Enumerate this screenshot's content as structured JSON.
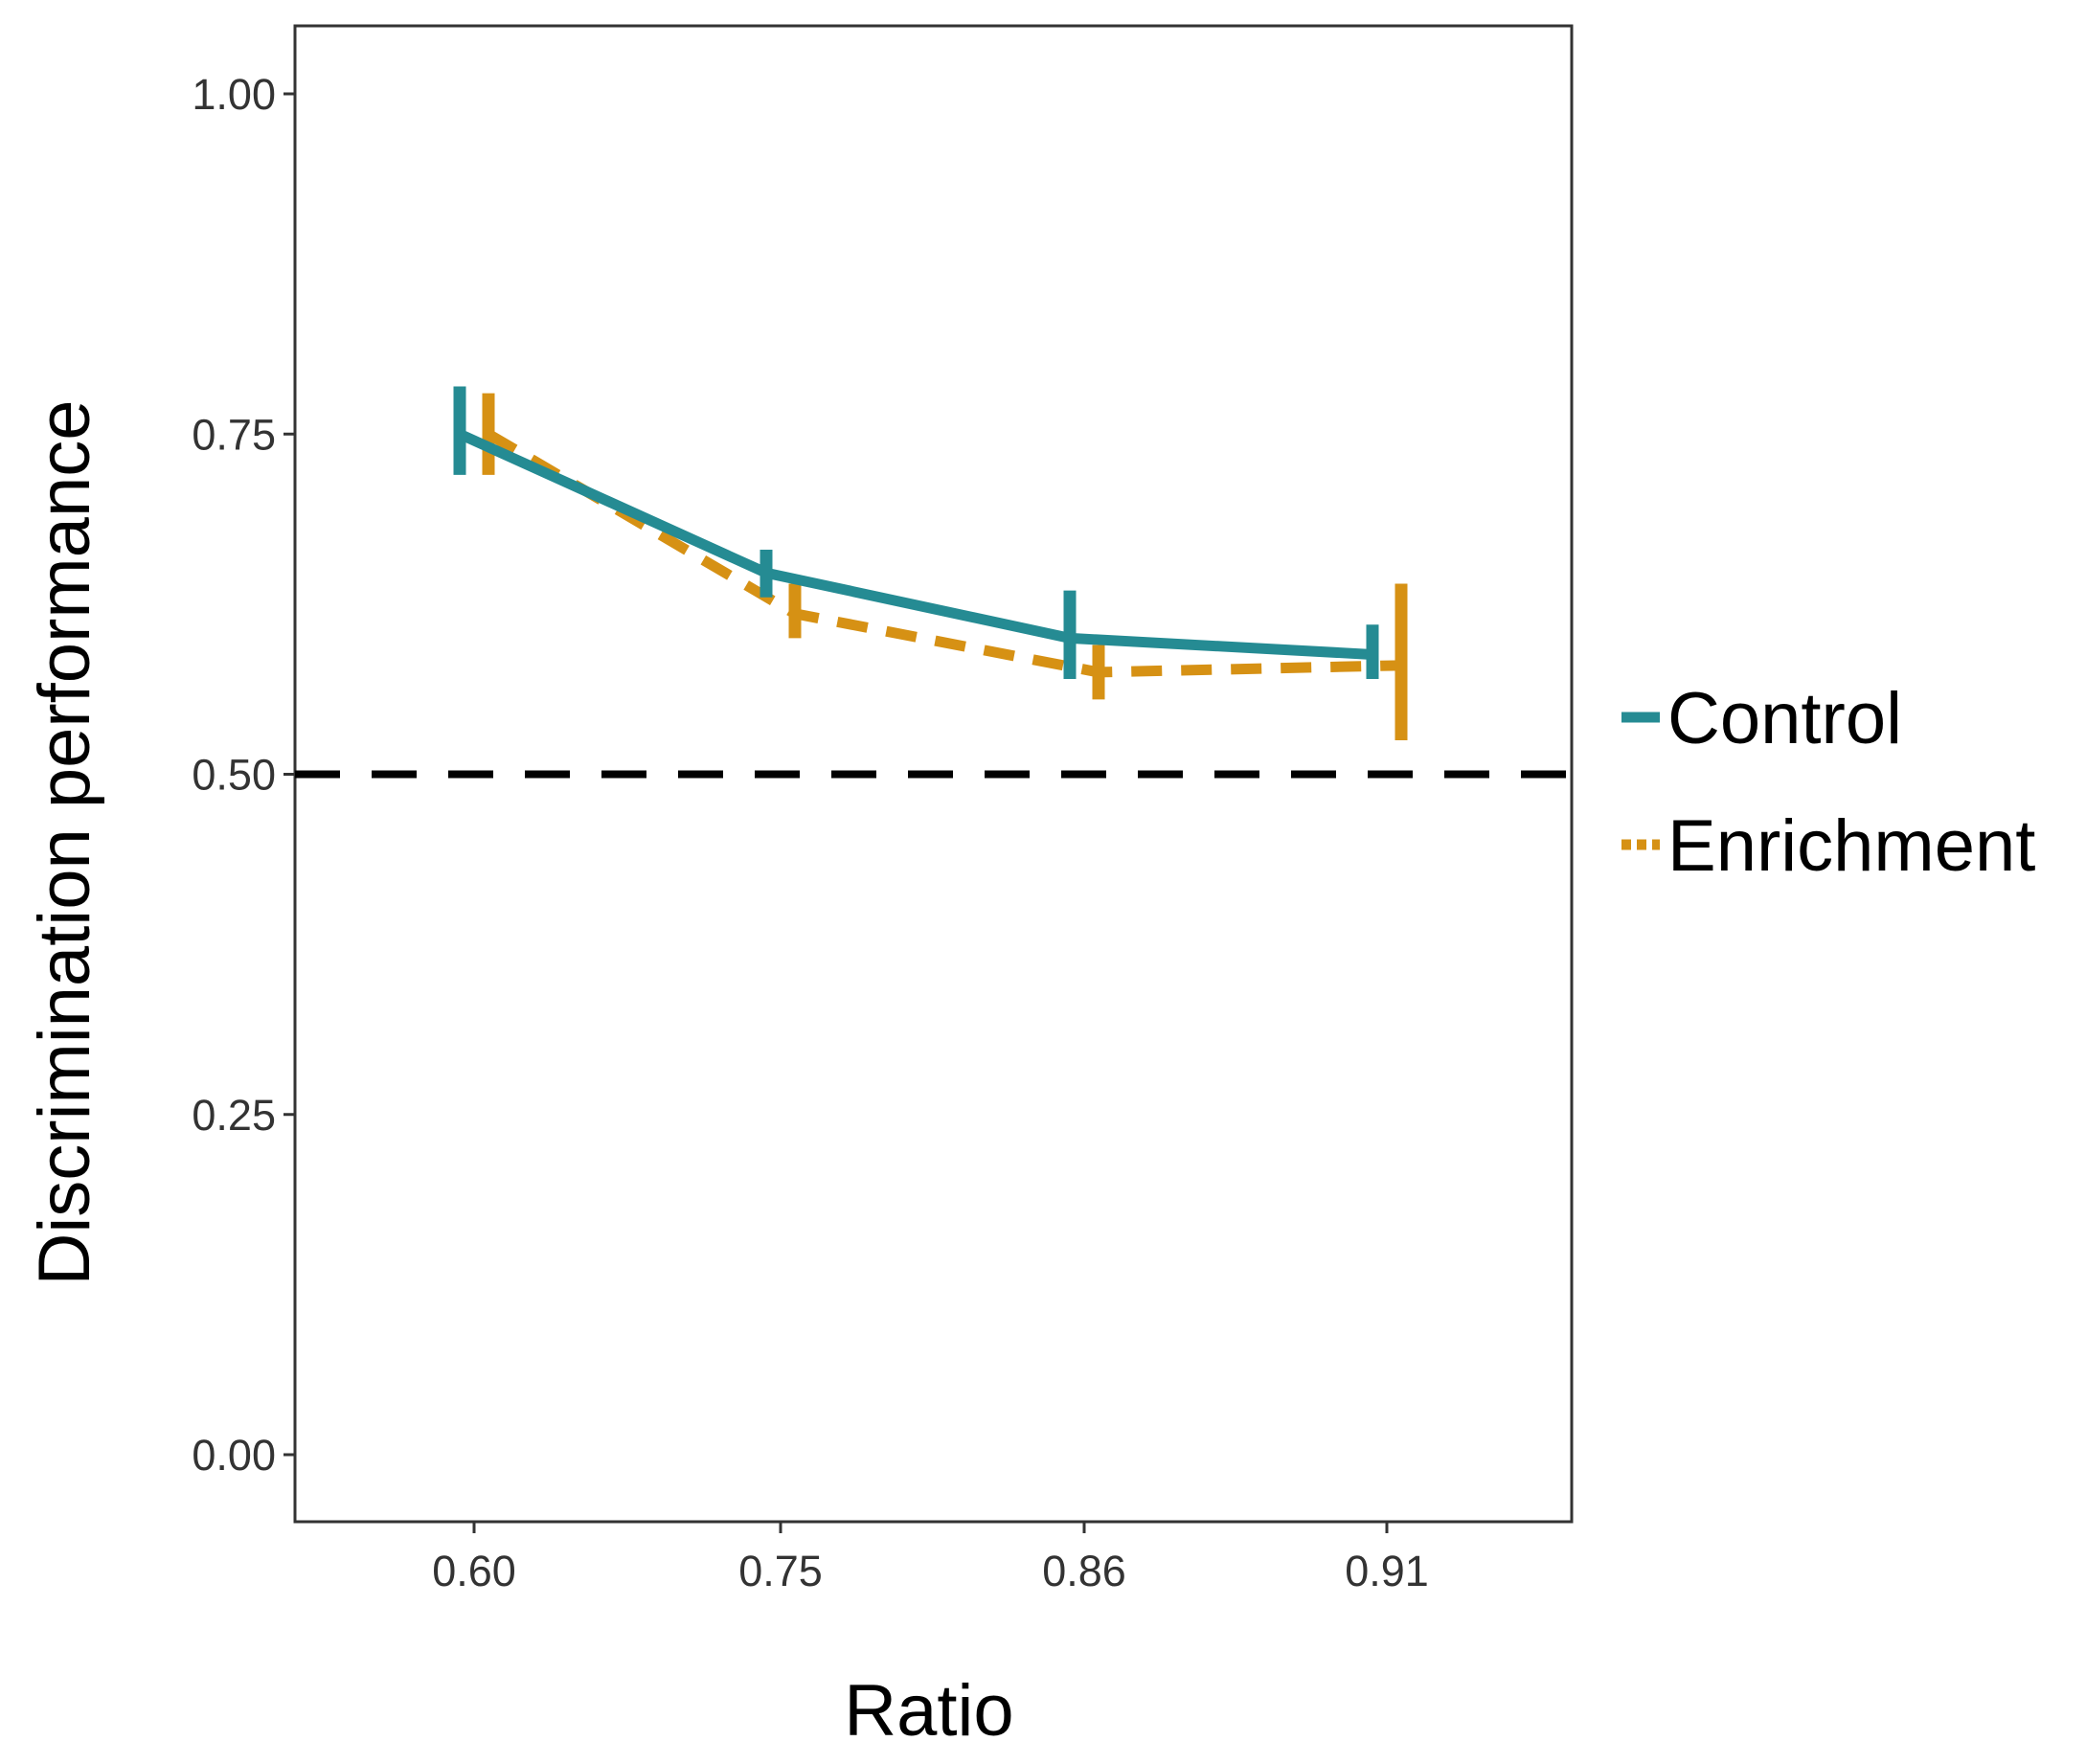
{
  "chart_data": {
    "type": "line",
    "title": "",
    "xlabel": "Ratio",
    "ylabel": "Discrimination performance",
    "categories": [
      "0.60",
      "0.75",
      "0.86",
      "0.91"
    ],
    "ylim": [
      -0.05,
      1.05
    ],
    "yticks": [
      "0.00",
      "0.25",
      "0.50",
      "0.75",
      "1.00"
    ],
    "grid": false,
    "reference_line": {
      "y": 0.5,
      "style": "dashed",
      "color": "#000000"
    },
    "legend_position": "right",
    "series": [
      {
        "name": "Control",
        "color": "#258b93",
        "style": "solid",
        "values": [
          0.75,
          0.648,
          0.6,
          0.588
        ],
        "error_low": [
          0.72,
          0.63,
          0.57,
          0.57
        ],
        "error_high": [
          0.785,
          0.665,
          0.635,
          0.61
        ]
      },
      {
        "name": "Enrichment",
        "color": "#d69114",
        "style": "dashed",
        "values": [
          0.75,
          0.618,
          0.575,
          0.58
        ],
        "error_low": [
          0.72,
          0.6,
          0.555,
          0.525
        ],
        "error_high": [
          0.78,
          0.64,
          0.595,
          0.64
        ]
      }
    ]
  }
}
